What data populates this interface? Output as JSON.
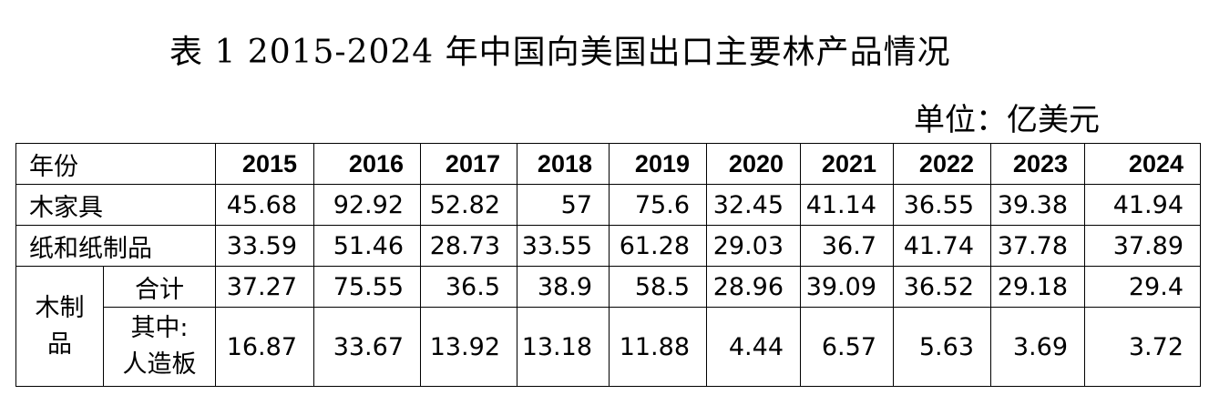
{
  "title": "表 1 2015-2024 年中国向美国出口主要林产品情况",
  "unit": "单位：亿美元",
  "table": {
    "header_label": "年份",
    "years": [
      "2015",
      "2016",
      "2017",
      "2018",
      "2019",
      "2020",
      "2021",
      "2022",
      "2023",
      "2024"
    ],
    "rows": [
      {
        "label": "木家具",
        "values": [
          "45.68",
          "92.92",
          "52.82",
          "57",
          "75.6",
          "32.45",
          "41.14",
          "36.55",
          "39.38",
          "41.94"
        ]
      },
      {
        "label": "纸和纸制品",
        "values": [
          "33.59",
          "51.46",
          "28.73",
          "33.55",
          "61.28",
          "29.03",
          "36.7",
          "41.74",
          "37.78",
          "37.89"
        ]
      }
    ],
    "wood_products": {
      "label_line1": "木制",
      "label_line2": "品",
      "total": {
        "label": "合计",
        "values": [
          "37.27",
          "75.55",
          "36.5",
          "38.9",
          "58.5",
          "28.96",
          "39.09",
          "36.52",
          "29.18",
          "29.4"
        ]
      },
      "of_which": {
        "label_line1": "其中:",
        "label_line2": "人造板",
        "values": [
          "16.87",
          "33.67",
          "13.92",
          "13.18",
          "11.88",
          "4.44",
          "6.57",
          "5.63",
          "3.69",
          "3.72"
        ]
      }
    }
  }
}
